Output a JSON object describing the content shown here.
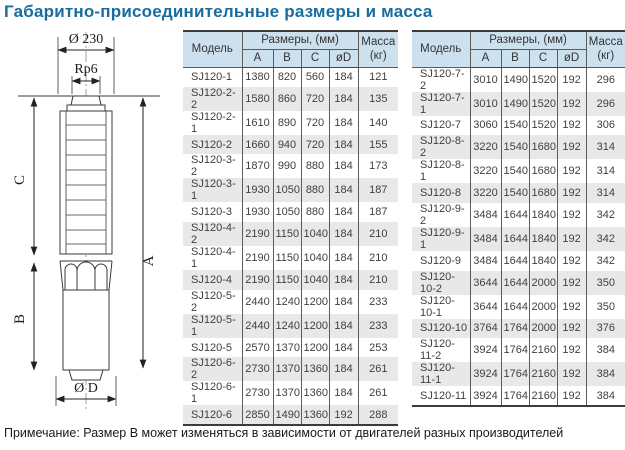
{
  "title": "Габаритно-присоединительные размеры и масса",
  "note": "Примечание: Размер B может изменяться в зависимости от двигателей разных производителей",
  "drawing": {
    "top_diameter_label": "Ø 230",
    "thread_label": "Rp6",
    "dim_a_label": "A",
    "dim_b_label": "B",
    "dim_c_label": "C",
    "bottom_diameter_label": "Ø D"
  },
  "table_header": {
    "model": "Модель",
    "dims_group": "Размеры, (мм)",
    "mass_line1": "Масса",
    "mass_line2": "(кг)",
    "col_a": "A",
    "col_b": "B",
    "col_c": "C",
    "col_d": "øD"
  },
  "tables": [
    {
      "rows": [
        [
          "SJ120-1",
          "1380",
          "820",
          "560",
          "184",
          "121"
        ],
        [
          "SJ120-2-2",
          "1580",
          "860",
          "720",
          "184",
          "135"
        ],
        [
          "SJ120-2-1",
          "1610",
          "890",
          "720",
          "184",
          "140"
        ],
        [
          "SJ120-2",
          "1660",
          "940",
          "720",
          "184",
          "155"
        ],
        [
          "SJ120-3-2",
          "1870",
          "990",
          "880",
          "184",
          "173"
        ],
        [
          "SJ120-3-1",
          "1930",
          "1050",
          "880",
          "184",
          "187"
        ],
        [
          "SJ120-3",
          "1930",
          "1050",
          "880",
          "184",
          "187"
        ],
        [
          "SJ120-4-2",
          "2190",
          "1150",
          "1040",
          "184",
          "210"
        ],
        [
          "SJ120-4-1",
          "2190",
          "1150",
          "1040",
          "184",
          "210"
        ],
        [
          "SJ120-4",
          "2190",
          "1150",
          "1040",
          "184",
          "210"
        ],
        [
          "SJ120-5-2",
          "2440",
          "1240",
          "1200",
          "184",
          "233"
        ],
        [
          "SJ120-5-1",
          "2440",
          "1240",
          "1200",
          "184",
          "233"
        ],
        [
          "SJ120-5",
          "2570",
          "1370",
          "1200",
          "184",
          "253"
        ],
        [
          "SJ120-6-2",
          "2730",
          "1370",
          "1360",
          "184",
          "261"
        ],
        [
          "SJ120-6-1",
          "2730",
          "1370",
          "1360",
          "184",
          "261"
        ],
        [
          "SJ120-6",
          "2850",
          "1490",
          "1360",
          "192",
          "288"
        ]
      ]
    },
    {
      "rows": [
        [
          "SJ120-7-2",
          "3010",
          "1490",
          "1520",
          "192",
          "296"
        ],
        [
          "SJ120-7-1",
          "3010",
          "1490",
          "1520",
          "192",
          "296"
        ],
        [
          "SJ120-7",
          "3060",
          "1540",
          "1520",
          "192",
          "306"
        ],
        [
          "SJ120-8-2",
          "3220",
          "1540",
          "1680",
          "192",
          "314"
        ],
        [
          "SJ120-8-1",
          "3220",
          "1540",
          "1680",
          "192",
          "314"
        ],
        [
          "SJ120-8",
          "3220",
          "1540",
          "1680",
          "192",
          "314"
        ],
        [
          "SJ120-9-2",
          "3484",
          "1644",
          "1840",
          "192",
          "342"
        ],
        [
          "SJ120-9-1",
          "3484",
          "1644",
          "1840",
          "192",
          "342"
        ],
        [
          "SJ120-9",
          "3484",
          "1644",
          "1840",
          "192",
          "342"
        ],
        [
          "SJ120-10-2",
          "3644",
          "1644",
          "2000",
          "192",
          "350"
        ],
        [
          "SJ120-10-1",
          "3644",
          "1644",
          "2000",
          "192",
          "350"
        ],
        [
          "SJ120-10",
          "3764",
          "1764",
          "2000",
          "192",
          "376"
        ],
        [
          "SJ120-11-2",
          "3924",
          "1764",
          "2160",
          "192",
          "384"
        ],
        [
          "SJ120-11-1",
          "3924",
          "1764",
          "2160",
          "192",
          "384"
        ],
        [
          "SJ120-11",
          "3924",
          "1764",
          "2160",
          "192",
          "384"
        ]
      ]
    }
  ],
  "colors": {
    "title": "#186c9e",
    "header_bg": "#cde0ee",
    "row_stripe": "#e8e8e8",
    "table_border": "#3b3b3b",
    "drawing_lines": "#3a3a3a"
  }
}
